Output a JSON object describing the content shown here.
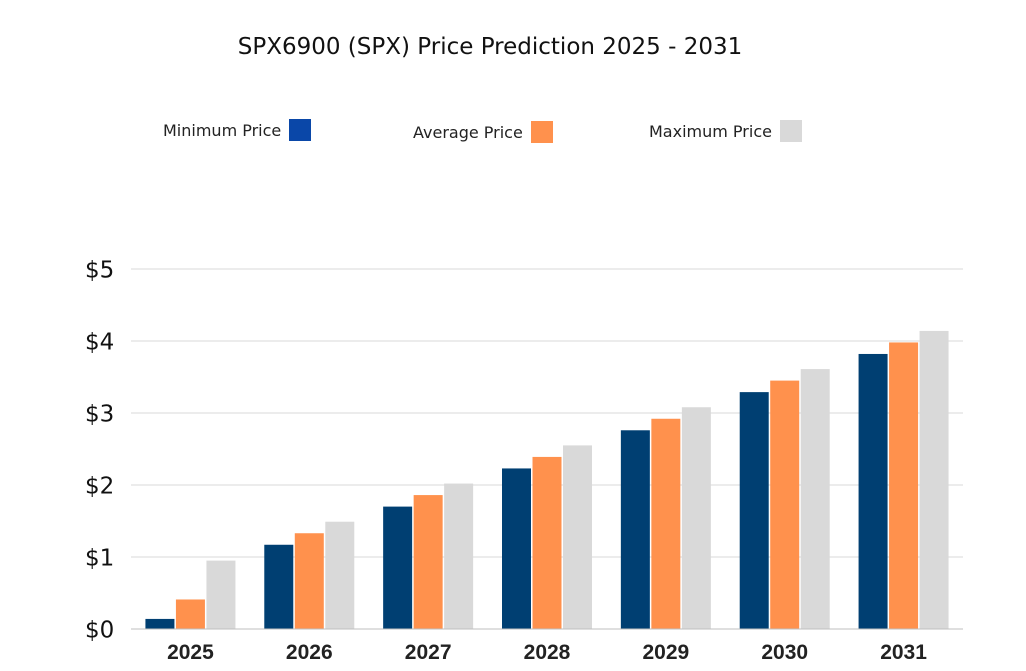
{
  "chart_data": {
    "type": "bar",
    "title": "SPX6900 (SPX) Price Prediction 2025 - 2031",
    "xlabel": "",
    "ylabel": "",
    "categories": [
      "2025",
      "2026",
      "2027",
      "2028",
      "2029",
      "2030",
      "2031"
    ],
    "series": [
      {
        "name": "Minimum Price",
        "color": "#003f72",
        "legend_color": "#0a47a8",
        "values": [
          0.14,
          1.17,
          1.7,
          2.23,
          2.76,
          3.29,
          3.82
        ]
      },
      {
        "name": "Average Price",
        "color": "#ff914d",
        "legend_color": "#ff914d",
        "values": [
          0.41,
          1.33,
          1.86,
          2.39,
          2.92,
          3.45,
          3.98
        ]
      },
      {
        "name": "Maximum Price",
        "color": "#d9d9d9",
        "legend_color": "#d9d9d9",
        "values": [
          0.95,
          1.49,
          2.02,
          2.55,
          3.08,
          3.61,
          4.14
        ]
      }
    ],
    "ylim": [
      0,
      5
    ],
    "yticks": [
      "$0",
      "$1",
      "$2",
      "$3",
      "$4",
      "$5"
    ],
    "grid": true,
    "legend_position": "top"
  }
}
